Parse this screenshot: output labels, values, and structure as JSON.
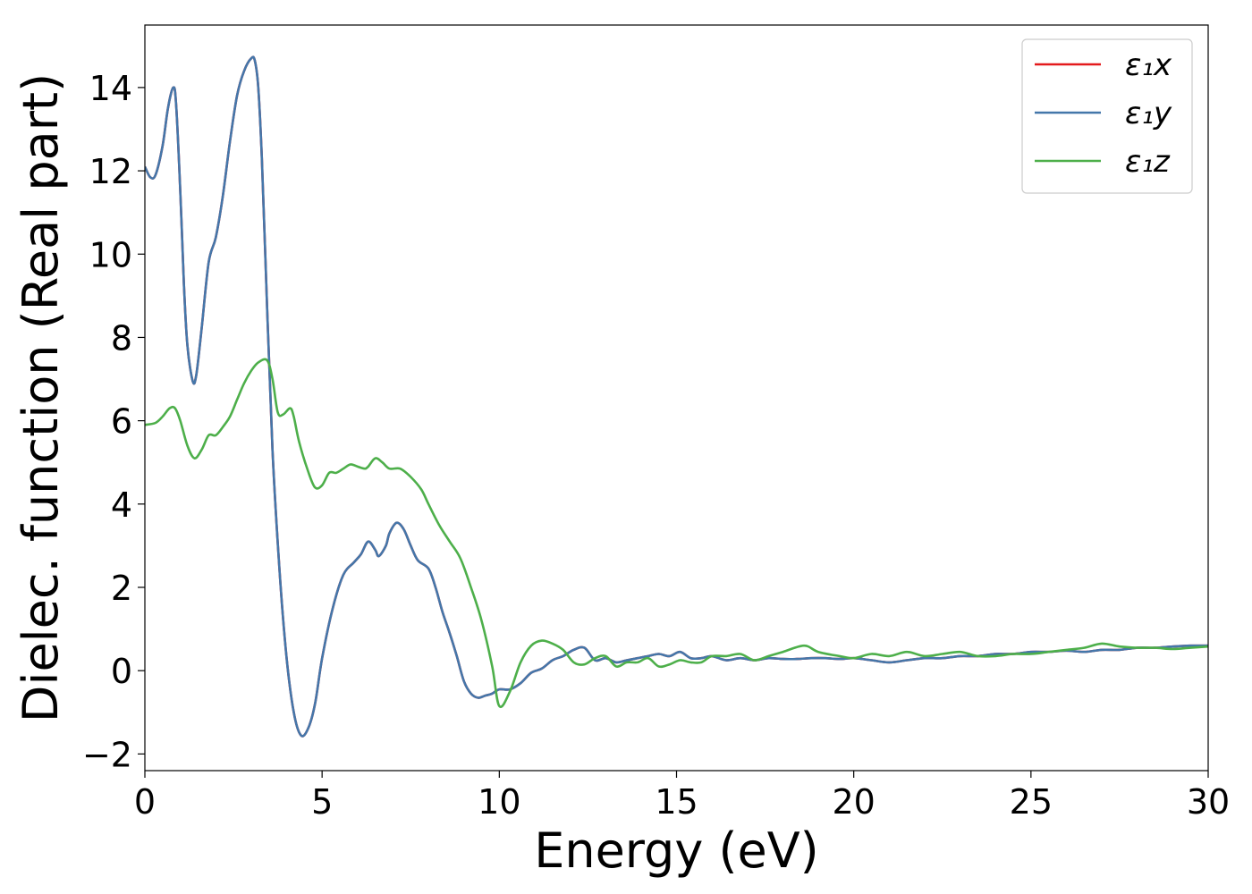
{
  "chart_data": {
    "type": "line",
    "title": "",
    "xlabel": "Energy (eV)",
    "ylabel": "Dielec. function (Real part)",
    "xlim": [
      0,
      30
    ],
    "ylim": [
      -2.4,
      15.5
    ],
    "xticks": [
      0,
      5,
      10,
      15,
      20,
      25,
      30
    ],
    "yticks": [
      -2,
      0,
      2,
      4,
      6,
      8,
      10,
      12,
      14
    ],
    "xtick_labels": [
      "0",
      "5",
      "10",
      "15",
      "20",
      "25",
      "30"
    ],
    "ytick_labels": [
      "−2",
      "0",
      "2",
      "4",
      "6",
      "8",
      "10",
      "12",
      "14"
    ],
    "grid": false,
    "legend_position": "top-right",
    "series": [
      {
        "name": "ε₁x",
        "color": "#e41a1c",
        "x": [
          0,
          0.15,
          0.3,
          0.5,
          0.65,
          0.8,
          0.88,
          1.0,
          1.1,
          1.2,
          1.35,
          1.45,
          1.6,
          1.8,
          2.0,
          2.2,
          2.4,
          2.6,
          2.8,
          3.0,
          3.1,
          3.2,
          3.3,
          3.45,
          3.6,
          3.8,
          4.0,
          4.2,
          4.4,
          4.6,
          4.8,
          5.0,
          5.3,
          5.6,
          5.9,
          6.1,
          6.3,
          6.5,
          6.6,
          6.8,
          6.9,
          7.1,
          7.3,
          7.5,
          7.7,
          8.0,
          8.2,
          8.4,
          8.6,
          8.8,
          9.0,
          9.2,
          9.4,
          9.6,
          9.8,
          10.0,
          10.3,
          10.6,
          10.9,
          11.2,
          11.5,
          11.8,
          12.1,
          12.4,
          12.7,
          13.0,
          13.3,
          13.6,
          13.9,
          14.2,
          14.5,
          14.8,
          15.1,
          15.4,
          15.7,
          16.0,
          16.4,
          16.8,
          17.2,
          17.6,
          18.0,
          18.4,
          18.8,
          19.2,
          19.6,
          20.0,
          20.5,
          21.0,
          21.5,
          22.0,
          22.5,
          23.0,
          23.5,
          24.0,
          24.5,
          25.0,
          25.5,
          26.0,
          26.5,
          27.0,
          27.5,
          28.0,
          28.5,
          29.0,
          29.5,
          30.0
        ],
        "y": [
          12.1,
          11.85,
          11.9,
          12.6,
          13.5,
          14.0,
          13.6,
          11.5,
          9.3,
          7.8,
          6.95,
          7.1,
          8.2,
          9.8,
          10.4,
          11.4,
          12.7,
          13.8,
          14.4,
          14.7,
          14.65,
          14.0,
          12.3,
          8.7,
          5.3,
          2.4,
          0.3,
          -1.0,
          -1.55,
          -1.4,
          -0.8,
          0.3,
          1.5,
          2.3,
          2.6,
          2.8,
          3.1,
          2.9,
          2.75,
          3.0,
          3.3,
          3.55,
          3.4,
          3.0,
          2.65,
          2.45,
          2.0,
          1.4,
          0.9,
          0.35,
          -0.25,
          -0.55,
          -0.65,
          -0.6,
          -0.55,
          -0.45,
          -0.45,
          -0.3,
          -0.05,
          0.05,
          0.25,
          0.35,
          0.5,
          0.55,
          0.25,
          0.3,
          0.2,
          0.25,
          0.3,
          0.35,
          0.4,
          0.35,
          0.45,
          0.3,
          0.3,
          0.35,
          0.25,
          0.3,
          0.25,
          0.3,
          0.28,
          0.28,
          0.3,
          0.3,
          0.28,
          0.3,
          0.25,
          0.2,
          0.25,
          0.3,
          0.3,
          0.35,
          0.35,
          0.4,
          0.4,
          0.45,
          0.45,
          0.48,
          0.45,
          0.5,
          0.5,
          0.55,
          0.55,
          0.58,
          0.6,
          0.6
        ]
      },
      {
        "name": "ε₁y",
        "color": "#4477aa",
        "x": [
          0,
          0.15,
          0.3,
          0.5,
          0.65,
          0.8,
          0.88,
          1.0,
          1.1,
          1.2,
          1.35,
          1.45,
          1.6,
          1.8,
          2.0,
          2.2,
          2.4,
          2.6,
          2.8,
          3.0,
          3.1,
          3.2,
          3.3,
          3.45,
          3.6,
          3.8,
          4.0,
          4.2,
          4.4,
          4.6,
          4.8,
          5.0,
          5.3,
          5.6,
          5.9,
          6.1,
          6.3,
          6.5,
          6.6,
          6.8,
          6.9,
          7.1,
          7.3,
          7.5,
          7.7,
          8.0,
          8.2,
          8.4,
          8.6,
          8.8,
          9.0,
          9.2,
          9.4,
          9.6,
          9.8,
          10.0,
          10.3,
          10.6,
          10.9,
          11.2,
          11.5,
          11.8,
          12.1,
          12.4,
          12.7,
          13.0,
          13.3,
          13.6,
          13.9,
          14.2,
          14.5,
          14.8,
          15.1,
          15.4,
          15.7,
          16.0,
          16.4,
          16.8,
          17.2,
          17.6,
          18.0,
          18.4,
          18.8,
          19.2,
          19.6,
          20.0,
          20.5,
          21.0,
          21.5,
          22.0,
          22.5,
          23.0,
          23.5,
          24.0,
          24.5,
          25.0,
          25.5,
          26.0,
          26.5,
          27.0,
          27.5,
          28.0,
          28.5,
          29.0,
          29.5,
          30.0
        ],
        "y": [
          12.1,
          11.85,
          11.9,
          12.6,
          13.5,
          14.0,
          13.6,
          11.5,
          9.3,
          7.8,
          6.95,
          7.1,
          8.2,
          9.8,
          10.4,
          11.4,
          12.7,
          13.8,
          14.4,
          14.7,
          14.65,
          14.0,
          12.3,
          8.7,
          5.3,
          2.4,
          0.3,
          -1.0,
          -1.55,
          -1.4,
          -0.8,
          0.3,
          1.5,
          2.3,
          2.6,
          2.8,
          3.1,
          2.9,
          2.75,
          3.0,
          3.3,
          3.55,
          3.4,
          3.0,
          2.65,
          2.45,
          2.0,
          1.4,
          0.9,
          0.35,
          -0.25,
          -0.55,
          -0.65,
          -0.6,
          -0.55,
          -0.45,
          -0.45,
          -0.3,
          -0.05,
          0.05,
          0.25,
          0.35,
          0.5,
          0.55,
          0.25,
          0.3,
          0.2,
          0.25,
          0.3,
          0.35,
          0.4,
          0.35,
          0.45,
          0.3,
          0.3,
          0.35,
          0.25,
          0.3,
          0.25,
          0.3,
          0.28,
          0.28,
          0.3,
          0.3,
          0.28,
          0.3,
          0.25,
          0.2,
          0.25,
          0.3,
          0.3,
          0.35,
          0.35,
          0.4,
          0.4,
          0.45,
          0.45,
          0.48,
          0.45,
          0.5,
          0.5,
          0.55,
          0.55,
          0.58,
          0.6,
          0.6
        ]
      },
      {
        "name": "ε₁z",
        "color": "#4daf4a",
        "x": [
          0,
          0.3,
          0.5,
          0.7,
          0.85,
          1.0,
          1.2,
          1.4,
          1.6,
          1.8,
          2.0,
          2.2,
          2.4,
          2.6,
          2.8,
          3.0,
          3.2,
          3.45,
          3.6,
          3.75,
          3.9,
          4.1,
          4.2,
          4.35,
          4.6,
          4.8,
          5.0,
          5.2,
          5.4,
          5.6,
          5.8,
          6.0,
          6.2,
          6.3,
          6.5,
          6.7,
          6.9,
          7.2,
          7.5,
          7.8,
          8.0,
          8.3,
          8.6,
          8.9,
          9.2,
          9.5,
          9.8,
          10.0,
          10.3,
          10.6,
          10.9,
          11.2,
          11.5,
          11.8,
          12.1,
          12.4,
          12.7,
          13.0,
          13.3,
          13.6,
          13.9,
          14.2,
          14.5,
          14.8,
          15.1,
          15.4,
          15.7,
          16.0,
          16.4,
          16.8,
          17.2,
          17.6,
          18.0,
          18.6,
          19.0,
          19.6,
          20.0,
          20.5,
          21.0,
          21.5,
          22.0,
          22.5,
          23.0,
          23.5,
          24.0,
          24.5,
          25.0,
          25.5,
          26.0,
          26.5,
          27.0,
          27.5,
          28.0,
          28.5,
          29.0,
          29.5,
          30.0
        ],
        "y": [
          5.9,
          5.95,
          6.1,
          6.3,
          6.3,
          6.0,
          5.4,
          5.1,
          5.3,
          5.65,
          5.65,
          5.85,
          6.1,
          6.5,
          6.9,
          7.2,
          7.4,
          7.45,
          7.0,
          6.2,
          6.15,
          6.3,
          6.1,
          5.5,
          4.8,
          4.4,
          4.45,
          4.75,
          4.75,
          4.85,
          4.95,
          4.9,
          4.85,
          4.9,
          5.1,
          5.0,
          4.85,
          4.85,
          4.65,
          4.35,
          4.0,
          3.5,
          3.1,
          2.7,
          2.0,
          1.2,
          0.1,
          -0.85,
          -0.5,
          0.2,
          0.6,
          0.72,
          0.65,
          0.5,
          0.2,
          0.15,
          0.3,
          0.35,
          0.1,
          0.2,
          0.2,
          0.3,
          0.1,
          0.15,
          0.25,
          0.2,
          0.2,
          0.35,
          0.35,
          0.4,
          0.25,
          0.35,
          0.45,
          0.6,
          0.45,
          0.35,
          0.3,
          0.4,
          0.35,
          0.45,
          0.35,
          0.4,
          0.45,
          0.35,
          0.35,
          0.4,
          0.4,
          0.45,
          0.5,
          0.55,
          0.65,
          0.58,
          0.55,
          0.55,
          0.52,
          0.55,
          0.58
        ]
      }
    ]
  }
}
